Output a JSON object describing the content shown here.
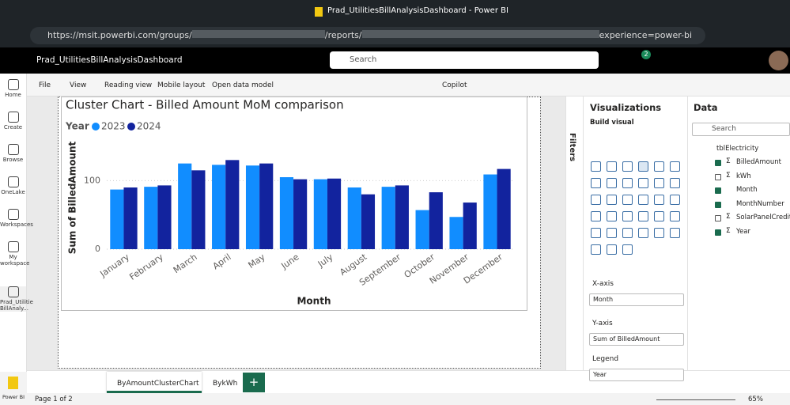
{
  "browser": {
    "title": "Prad_UtilitiesBillAnalysisDashboard - Power BI",
    "url_start": "https://msit.powerbi.com/groups/",
    "url_mid": "/reports/",
    "url_end": "experience=power-bi"
  },
  "app": {
    "name": "Prad_UtilitiesBillAnalysisDashboard",
    "search": "Search",
    "notifications": "2"
  },
  "nav": [
    "Home",
    "Create",
    "Browse",
    "OneLake",
    "Workspaces",
    "My workspace",
    "Prad_Utilitie BillAnaly..."
  ],
  "ribbon": [
    "File",
    "View",
    "Reading view",
    "Mobile layout",
    "Open data model"
  ],
  "copilot": "Copilot",
  "filters": "Filters",
  "visualizations": {
    "title": "Visualizations",
    "build": "Build visual",
    "wells": [
      {
        "label": "X-axis",
        "field": "Month"
      },
      {
        "label": "Y-axis",
        "field": "Sum of BilledAmount"
      },
      {
        "label": "Legend",
        "field": "Year"
      }
    ]
  },
  "data_pane": {
    "title": "Data",
    "search": "Search",
    "table": "tblElectricity",
    "fields": [
      {
        "name": "BilledAmount",
        "checked": true,
        "sigma": true
      },
      {
        "name": "kWh",
        "checked": false,
        "sigma": true
      },
      {
        "name": "Month",
        "checked": true,
        "sigma": false
      },
      {
        "name": "MonthNumber",
        "checked": true,
        "sigma": false
      },
      {
        "name": "SolarPanelCredits",
        "checked": false,
        "sigma": true
      },
      {
        "name": "Year",
        "checked": true,
        "sigma": true
      }
    ]
  },
  "tabs": [
    "ByAmountClusterChart",
    "BykWh"
  ],
  "add_tab": "+",
  "status": {
    "page": "Page 1 of 2",
    "zoom": "65%"
  },
  "power_bi": "Power BI",
  "chart_data": {
    "type": "bar",
    "title": "Cluster Chart - Billed Amount MoM comparison",
    "legend_title": "Year",
    "x_label": "Month",
    "y_label": "Sum of BilledAmount",
    "categories": [
      "January",
      "February",
      "March",
      "April",
      "May",
      "June",
      "July",
      "August",
      "September",
      "October",
      "November",
      "December"
    ],
    "series": [
      {
        "name": "2023",
        "color": "#118dff",
        "values": [
          87,
          91,
          125,
          123,
          122,
          105,
          102,
          90,
          91,
          57,
          47,
          109
        ]
      },
      {
        "name": "2024",
        "color": "#12239e",
        "values": [
          90,
          93,
          115,
          130,
          125,
          102,
          103,
          80,
          93,
          83,
          68,
          117
        ]
      }
    ],
    "ylim": [
      0,
      150
    ],
    "yticks": [
      0,
      100
    ],
    "grid": true
  }
}
